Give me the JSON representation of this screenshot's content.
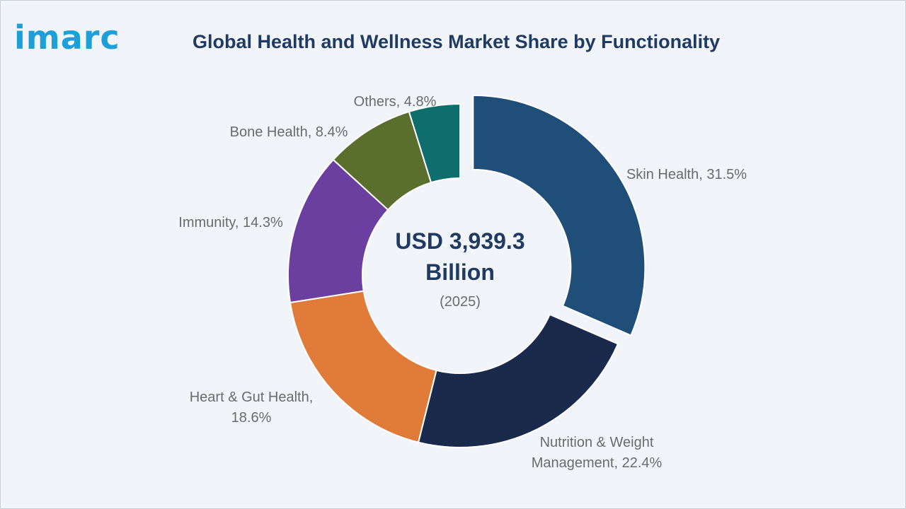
{
  "brand": {
    "logo_text": "imarc",
    "logo_color": "#1e9fd8"
  },
  "title": "Global Health and Wellness Market Share by Functionality",
  "chart_data": {
    "type": "pie",
    "donut": true,
    "unit": "%",
    "center": {
      "line1": "USD 3,939.3",
      "line2": "Billion",
      "line3": "(2025)"
    },
    "slices": [
      {
        "label": "Skin Health",
        "value": 31.5,
        "color": "#1f4e79",
        "exploded": true,
        "label_lines": [
          "Skin Health, 31.5%"
        ]
      },
      {
        "label": "Nutrition & Weight Management",
        "value": 22.4,
        "color": "#1a2a4d",
        "label_lines": [
          "Nutrition & Weight",
          "Management, 22.4%"
        ]
      },
      {
        "label": "Heart & Gut Health",
        "value": 18.6,
        "color": "#e07b39",
        "label_lines": [
          "Heart & Gut Health,",
          "18.6%"
        ]
      },
      {
        "label": "Immunity",
        "value": 14.3,
        "color": "#6b3fa0",
        "label_lines": [
          "Immunity, 14.3%"
        ]
      },
      {
        "label": "Bone Health",
        "value": 8.4,
        "color": "#5a6e2e",
        "label_lines": [
          "Bone Health, 8.4%"
        ]
      },
      {
        "label": "Others",
        "value": 4.8,
        "color": "#0e6e6e",
        "label_lines": [
          "Others, 4.8%"
        ]
      }
    ]
  }
}
